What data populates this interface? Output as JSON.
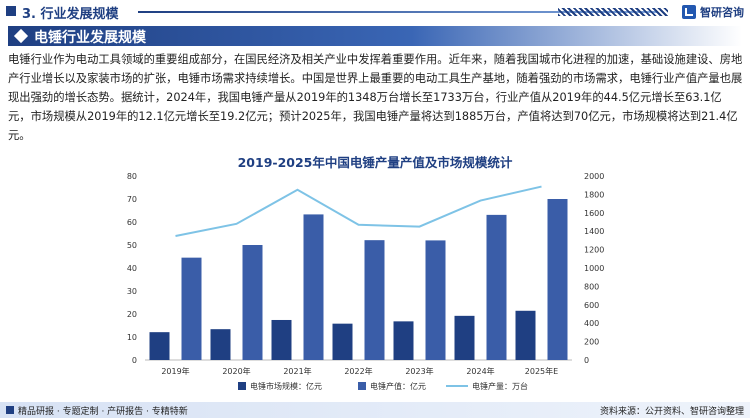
{
  "header": {
    "section_title": "3. 行业发展规模",
    "brand": "智研咨询"
  },
  "heading": "电锤行业发展规模",
  "paragraph": "电锤行业作为电动工具领域的重要组成部分，在国民经济及相关产业中发挥着重要作用。近年来，随着我国城市化进程的加速，基础设施建设、房地产行业增长以及家装市场的扩张，电锤市场需求持续增长。中国是世界上最重要的电动工具生产基地，随着强劲的市场需求，电锤行业产值产量也展现出强劲的增长态势。据统计，2024年，我国电锤产量从2019年的1348万台增长至1733万台，行业产值从2019年的44.5亿元增长至63.1亿元，市场规模从2019年的12.1亿元增长至19.2亿元；预计2025年，我国电锤产量将达到1885万台，产值将达到70亿元，市场规模将达到21.4亿元。",
  "chart_title": "2019-2025年中国电锤产量产值及市场规模统计",
  "footer": {
    "left": "精品研报 · 专题定制 · 产研报告 · 专精特新",
    "right": "资料来源：公开资料、智研咨询整理"
  },
  "colors": {
    "primary": "#1f3f82",
    "bar_market": "#1f3f82",
    "bar_output_value": "#3a5da8",
    "line_production": "#7ec3e6"
  },
  "chart_data": {
    "type": "bar",
    "categories": [
      "2019年",
      "2020年",
      "2021年",
      "2022年",
      "2023年",
      "2024年",
      "2025年E"
    ],
    "series": [
      {
        "name": "电锤市场规模：亿元",
        "type": "bar",
        "axis": "left",
        "values": [
          12.1,
          13.4,
          17.4,
          15.8,
          16.8,
          19.2,
          21.4
        ]
      },
      {
        "name": "电锤产值：亿元",
        "type": "bar",
        "axis": "left",
        "values": [
          44.5,
          50.0,
          63.3,
          52.1,
          52.0,
          63.1,
          70.0
        ]
      },
      {
        "name": "电锤产量：万台",
        "type": "line",
        "axis": "right",
        "values": [
          1348,
          1480,
          1850,
          1470,
          1450,
          1733,
          1885
        ]
      }
    ],
    "ylim_left": [
      0,
      80
    ],
    "yticks_left": [
      0,
      10,
      20,
      30,
      40,
      50,
      60,
      70,
      80
    ],
    "ylim_right": [
      0,
      2000
    ],
    "yticks_right": [
      0,
      200,
      400,
      600,
      800,
      1000,
      1200,
      1400,
      1600,
      1800,
      2000
    ],
    "grid": false,
    "legend": "bottom"
  }
}
